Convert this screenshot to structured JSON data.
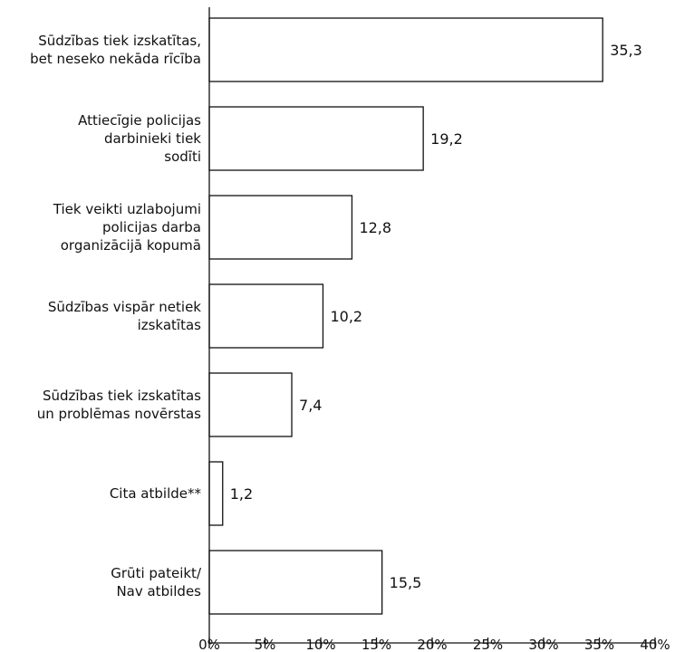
{
  "chart_data": {
    "type": "bar",
    "orientation": "horizontal",
    "categories": [
      [
        "Sūdzības tiek izskatītas,",
        "bet neseko nekāda rīcība"
      ],
      [
        "Attiecīgie policijas",
        "darbinieki tiek",
        "sodīti"
      ],
      [
        "Tiek veikti uzlabojumi",
        "policijas darba",
        "organizācijā kopumā"
      ],
      [
        "Sūdzības vispār netiek",
        "izskatītas"
      ],
      [
        "Sūdzības tiek izskatītas",
        "un problēmas novērstas"
      ],
      [
        "Cita atbilde**"
      ],
      [
        "Grūti pateikt/",
        "Nav atbildes"
      ]
    ],
    "values": [
      35.3,
      19.2,
      12.8,
      10.2,
      7.4,
      1.2,
      15.5
    ],
    "value_labels": [
      "35,3",
      "19,2",
      "12,8",
      "10,2",
      "7,4",
      "1,2",
      "15,5"
    ],
    "xlim": [
      0,
      40
    ],
    "xticks": [
      0,
      5,
      10,
      15,
      20,
      25,
      30,
      35,
      40
    ],
    "xtick_labels": [
      "0%",
      "5%",
      "10%",
      "15%",
      "20%",
      "25%",
      "30%",
      "35%",
      "40%"
    ],
    "title": "",
    "xlabel": "",
    "ylabel": "",
    "grid": false,
    "bar_fill": "#ffffff",
    "bar_stroke": "#111111"
  }
}
